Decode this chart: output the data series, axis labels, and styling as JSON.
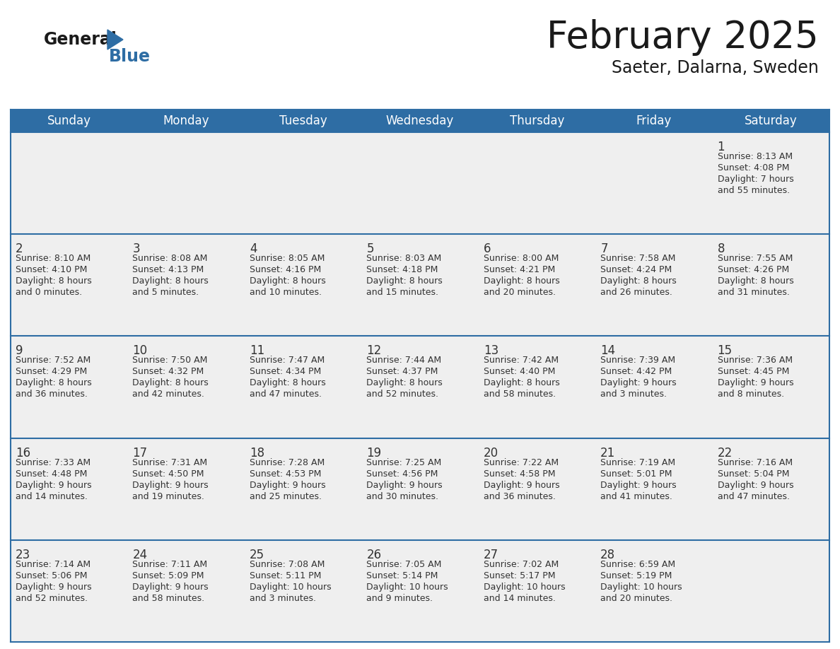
{
  "title": "February 2025",
  "subtitle": "Saeter, Dalarna, Sweden",
  "header_bg": "#2E6DA4",
  "header_text": "#FFFFFF",
  "cell_bg": "#EFEFEF",
  "cell_bg_empty": "#EFEFEF",
  "day_number_color": "#333333",
  "cell_text_color": "#333333",
  "border_color": "#2E6DA4",
  "days_of_week": [
    "Sunday",
    "Monday",
    "Tuesday",
    "Wednesday",
    "Thursday",
    "Friday",
    "Saturday"
  ],
  "calendar": [
    [
      null,
      null,
      null,
      null,
      null,
      null,
      {
        "day": "1",
        "sunrise": "8:13 AM",
        "sunset": "4:08 PM",
        "daylight": "7 hours",
        "daylight2": "and 55 minutes."
      }
    ],
    [
      {
        "day": "2",
        "sunrise": "8:10 AM",
        "sunset": "4:10 PM",
        "daylight": "8 hours",
        "daylight2": "and 0 minutes."
      },
      {
        "day": "3",
        "sunrise": "8:08 AM",
        "sunset": "4:13 PM",
        "daylight": "8 hours",
        "daylight2": "and 5 minutes."
      },
      {
        "day": "4",
        "sunrise": "8:05 AM",
        "sunset": "4:16 PM",
        "daylight": "8 hours",
        "daylight2": "and 10 minutes."
      },
      {
        "day": "5",
        "sunrise": "8:03 AM",
        "sunset": "4:18 PM",
        "daylight": "8 hours",
        "daylight2": "and 15 minutes."
      },
      {
        "day": "6",
        "sunrise": "8:00 AM",
        "sunset": "4:21 PM",
        "daylight": "8 hours",
        "daylight2": "and 20 minutes."
      },
      {
        "day": "7",
        "sunrise": "7:58 AM",
        "sunset": "4:24 PM",
        "daylight": "8 hours",
        "daylight2": "and 26 minutes."
      },
      {
        "day": "8",
        "sunrise": "7:55 AM",
        "sunset": "4:26 PM",
        "daylight": "8 hours",
        "daylight2": "and 31 minutes."
      }
    ],
    [
      {
        "day": "9",
        "sunrise": "7:52 AM",
        "sunset": "4:29 PM",
        "daylight": "8 hours",
        "daylight2": "and 36 minutes."
      },
      {
        "day": "10",
        "sunrise": "7:50 AM",
        "sunset": "4:32 PM",
        "daylight": "8 hours",
        "daylight2": "and 42 minutes."
      },
      {
        "day": "11",
        "sunrise": "7:47 AM",
        "sunset": "4:34 PM",
        "daylight": "8 hours",
        "daylight2": "and 47 minutes."
      },
      {
        "day": "12",
        "sunrise": "7:44 AM",
        "sunset": "4:37 PM",
        "daylight": "8 hours",
        "daylight2": "and 52 minutes."
      },
      {
        "day": "13",
        "sunrise": "7:42 AM",
        "sunset": "4:40 PM",
        "daylight": "8 hours",
        "daylight2": "and 58 minutes."
      },
      {
        "day": "14",
        "sunrise": "7:39 AM",
        "sunset": "4:42 PM",
        "daylight": "9 hours",
        "daylight2": "and 3 minutes."
      },
      {
        "day": "15",
        "sunrise": "7:36 AM",
        "sunset": "4:45 PM",
        "daylight": "9 hours",
        "daylight2": "and 8 minutes."
      }
    ],
    [
      {
        "day": "16",
        "sunrise": "7:33 AM",
        "sunset": "4:48 PM",
        "daylight": "9 hours",
        "daylight2": "and 14 minutes."
      },
      {
        "day": "17",
        "sunrise": "7:31 AM",
        "sunset": "4:50 PM",
        "daylight": "9 hours",
        "daylight2": "and 19 minutes."
      },
      {
        "day": "18",
        "sunrise": "7:28 AM",
        "sunset": "4:53 PM",
        "daylight": "9 hours",
        "daylight2": "and 25 minutes."
      },
      {
        "day": "19",
        "sunrise": "7:25 AM",
        "sunset": "4:56 PM",
        "daylight": "9 hours",
        "daylight2": "and 30 minutes."
      },
      {
        "day": "20",
        "sunrise": "7:22 AM",
        "sunset": "4:58 PM",
        "daylight": "9 hours",
        "daylight2": "and 36 minutes."
      },
      {
        "day": "21",
        "sunrise": "7:19 AM",
        "sunset": "5:01 PM",
        "daylight": "9 hours",
        "daylight2": "and 41 minutes."
      },
      {
        "day": "22",
        "sunrise": "7:16 AM",
        "sunset": "5:04 PM",
        "daylight": "9 hours",
        "daylight2": "and 47 minutes."
      }
    ],
    [
      {
        "day": "23",
        "sunrise": "7:14 AM",
        "sunset": "5:06 PM",
        "daylight": "9 hours",
        "daylight2": "and 52 minutes."
      },
      {
        "day": "24",
        "sunrise": "7:11 AM",
        "sunset": "5:09 PM",
        "daylight": "9 hours",
        "daylight2": "and 58 minutes."
      },
      {
        "day": "25",
        "sunrise": "7:08 AM",
        "sunset": "5:11 PM",
        "daylight": "10 hours",
        "daylight2": "and 3 minutes."
      },
      {
        "day": "26",
        "sunrise": "7:05 AM",
        "sunset": "5:14 PM",
        "daylight": "10 hours",
        "daylight2": "and 9 minutes."
      },
      {
        "day": "27",
        "sunrise": "7:02 AM",
        "sunset": "5:17 PM",
        "daylight": "10 hours",
        "daylight2": "and 14 minutes."
      },
      {
        "day": "28",
        "sunrise": "6:59 AM",
        "sunset": "5:19 PM",
        "daylight": "10 hours",
        "daylight2": "and 20 minutes."
      },
      null
    ]
  ]
}
